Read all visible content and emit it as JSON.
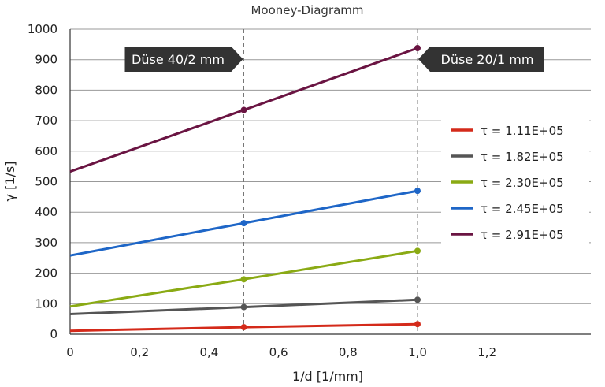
{
  "chart_data": {
    "type": "line",
    "title": "Mooney-Diagramm",
    "xlabel": "1/d [1/mm]",
    "ylabel": "γ [1/s]",
    "xlim": [
      0,
      1.2
    ],
    "ylim": [
      0,
      1000
    ],
    "x_ticks": [
      "0",
      "0,2",
      "0,4",
      "0,6",
      "0,8",
      "1,0",
      "1,2"
    ],
    "y_ticks": [
      "0",
      "100",
      "200",
      "300",
      "400",
      "500",
      "600",
      "700",
      "800",
      "900",
      "1000"
    ],
    "grid": "horizontal",
    "legend_position": "right",
    "series": [
      {
        "name": "τ = 1.11E+05",
        "color": "#d42a1a",
        "x": [
          0,
          0.5,
          1.0
        ],
        "y": [
          11,
          23,
          33
        ],
        "markers_at": [
          0.5,
          1.0
        ]
      },
      {
        "name": "τ = 1.82E+05",
        "color": "#555555",
        "x": [
          0,
          0.5,
          1.0
        ],
        "y": [
          66,
          89,
          113
        ],
        "markers_at": [
          0.5,
          1.0
        ]
      },
      {
        "name": "τ = 2.30E+05",
        "color": "#8aaa14",
        "x": [
          0,
          0.5,
          1.0
        ],
        "y": [
          91,
          180,
          273
        ],
        "markers_at": [
          0.5,
          1.0
        ]
      },
      {
        "name": "τ = 2.45E+05",
        "color": "#1e66c7",
        "x": [
          0,
          0.5,
          1.0
        ],
        "y": [
          258,
          364,
          470
        ],
        "markers_at": [
          0.5,
          1.0
        ]
      },
      {
        "name": "τ = 2.91E+05",
        "color": "#6a1442",
        "x": [
          0,
          0.5,
          1.0
        ],
        "y": [
          533,
          735,
          938
        ],
        "markers_at": [
          0.5,
          1.0
        ]
      }
    ],
    "reference_lines": [
      {
        "x": 0.5,
        "label": "Düse 40/2 mm",
        "tag_side": "left"
      },
      {
        "x": 1.0,
        "label": "Düse 20/1 mm",
        "tag_side": "right"
      }
    ]
  }
}
